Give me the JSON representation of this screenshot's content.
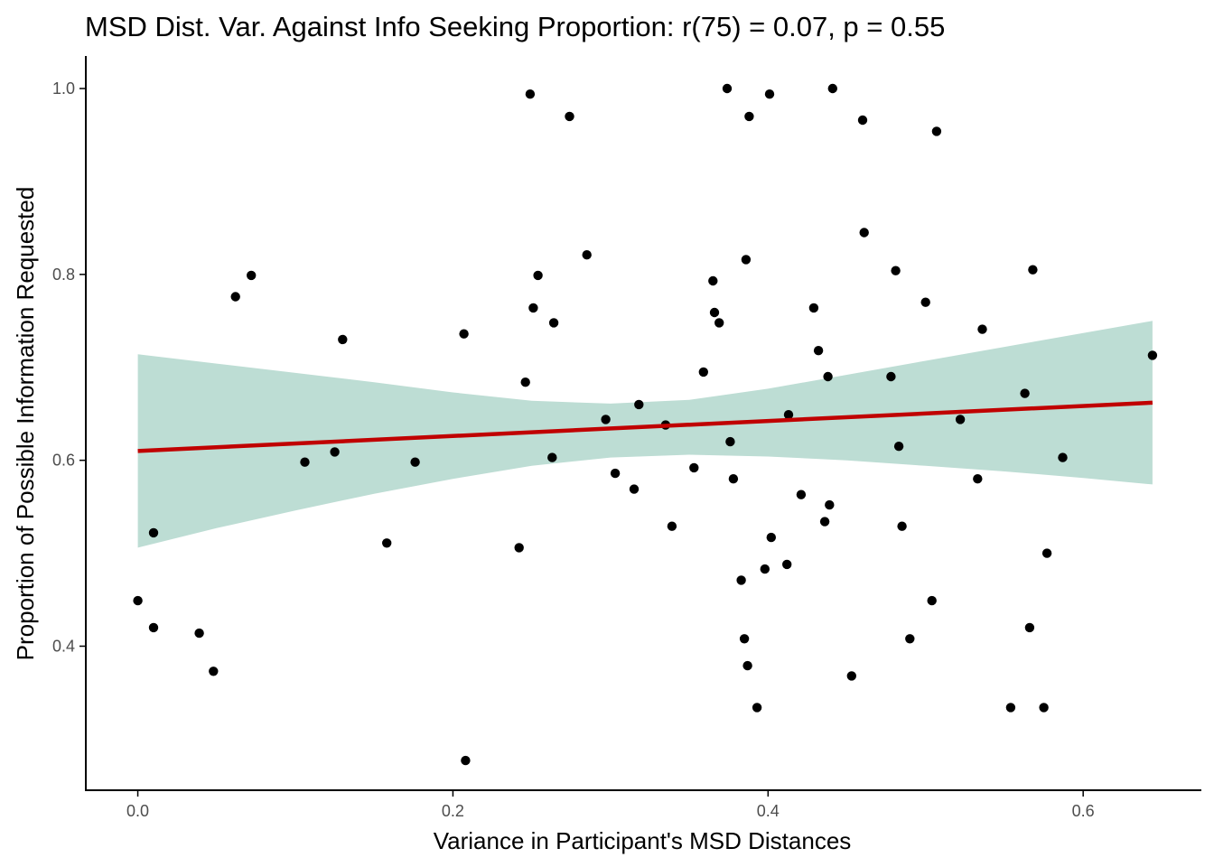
{
  "chart_data": {
    "type": "scatter",
    "title": "MSD Dist. Var. Against Info Seeking Proportion: r(75) = 0.07, p = 0.55",
    "xlabel": "Variance in Participant's MSD Distances",
    "ylabel": "Proportion of Possible Information Requested",
    "xlim": [
      -0.033,
      0.675
    ],
    "ylim": [
      0.245,
      1.035
    ],
    "x_ticks": [
      0.0,
      0.2,
      0.4,
      0.6
    ],
    "x_tick_labels": [
      "0.0",
      "0.2",
      "0.4",
      "0.6"
    ],
    "y_ticks": [
      0.4,
      0.6,
      0.8,
      1.0
    ],
    "y_tick_labels": [
      "0.4",
      "0.6",
      "0.8",
      "1.0"
    ],
    "grid": false,
    "legend": "none",
    "colors": {
      "points": "#000000",
      "fit_line": "#c00000",
      "confidence_band": "#bdddd4",
      "axis": "#000000",
      "tick_label": "#4d4d4d"
    },
    "points": [
      {
        "x": 0.0,
        "y": 0.449
      },
      {
        "x": 0.01,
        "y": 0.522
      },
      {
        "x": 0.01,
        "y": 0.42
      },
      {
        "x": 0.039,
        "y": 0.414
      },
      {
        "x": 0.048,
        "y": 0.373
      },
      {
        "x": 0.062,
        "y": 0.776
      },
      {
        "x": 0.072,
        "y": 0.799
      },
      {
        "x": 0.106,
        "y": 0.598
      },
      {
        "x": 0.125,
        "y": 0.609
      },
      {
        "x": 0.13,
        "y": 0.73
      },
      {
        "x": 0.158,
        "y": 0.511
      },
      {
        "x": 0.176,
        "y": 0.598
      },
      {
        "x": 0.207,
        "y": 0.736
      },
      {
        "x": 0.208,
        "y": 0.277
      },
      {
        "x": 0.242,
        "y": 0.506
      },
      {
        "x": 0.246,
        "y": 0.684
      },
      {
        "x": 0.249,
        "y": 0.994
      },
      {
        "x": 0.251,
        "y": 0.764
      },
      {
        "x": 0.254,
        "y": 0.799
      },
      {
        "x": 0.263,
        "y": 0.603
      },
      {
        "x": 0.264,
        "y": 0.748
      },
      {
        "x": 0.274,
        "y": 0.97
      },
      {
        "x": 0.285,
        "y": 0.821
      },
      {
        "x": 0.297,
        "y": 0.644
      },
      {
        "x": 0.303,
        "y": 0.586
      },
      {
        "x": 0.315,
        "y": 0.569
      },
      {
        "x": 0.318,
        "y": 0.66
      },
      {
        "x": 0.335,
        "y": 0.638
      },
      {
        "x": 0.339,
        "y": 0.529
      },
      {
        "x": 0.353,
        "y": 0.592
      },
      {
        "x": 0.359,
        "y": 0.695
      },
      {
        "x": 0.365,
        "y": 0.793
      },
      {
        "x": 0.366,
        "y": 0.759
      },
      {
        "x": 0.369,
        "y": 0.748
      },
      {
        "x": 0.374,
        "y": 1.0
      },
      {
        "x": 0.376,
        "y": 0.62
      },
      {
        "x": 0.378,
        "y": 0.58
      },
      {
        "x": 0.383,
        "y": 0.471
      },
      {
        "x": 0.385,
        "y": 0.408
      },
      {
        "x": 0.386,
        "y": 0.816
      },
      {
        "x": 0.387,
        "y": 0.379
      },
      {
        "x": 0.388,
        "y": 0.97
      },
      {
        "x": 0.393,
        "y": 0.334
      },
      {
        "x": 0.398,
        "y": 0.483
      },
      {
        "x": 0.401,
        "y": 0.994
      },
      {
        "x": 0.402,
        "y": 0.517
      },
      {
        "x": 0.412,
        "y": 0.488
      },
      {
        "x": 0.413,
        "y": 0.649
      },
      {
        "x": 0.421,
        "y": 0.563
      },
      {
        "x": 0.429,
        "y": 0.764
      },
      {
        "x": 0.432,
        "y": 0.718
      },
      {
        "x": 0.436,
        "y": 0.534
      },
      {
        "x": 0.438,
        "y": 0.69
      },
      {
        "x": 0.439,
        "y": 0.552
      },
      {
        "x": 0.441,
        "y": 1.0
      },
      {
        "x": 0.453,
        "y": 0.368
      },
      {
        "x": 0.46,
        "y": 0.966
      },
      {
        "x": 0.461,
        "y": 0.845
      },
      {
        "x": 0.478,
        "y": 0.69
      },
      {
        "x": 0.481,
        "y": 0.804
      },
      {
        "x": 0.483,
        "y": 0.615
      },
      {
        "x": 0.485,
        "y": 0.529
      },
      {
        "x": 0.49,
        "y": 0.408
      },
      {
        "x": 0.5,
        "y": 0.77
      },
      {
        "x": 0.504,
        "y": 0.449
      },
      {
        "x": 0.507,
        "y": 0.954
      },
      {
        "x": 0.522,
        "y": 0.644
      },
      {
        "x": 0.533,
        "y": 0.58
      },
      {
        "x": 0.536,
        "y": 0.741
      },
      {
        "x": 0.554,
        "y": 0.334
      },
      {
        "x": 0.563,
        "y": 0.672
      },
      {
        "x": 0.566,
        "y": 0.42
      },
      {
        "x": 0.568,
        "y": 0.805
      },
      {
        "x": 0.575,
        "y": 0.334
      },
      {
        "x": 0.577,
        "y": 0.5
      },
      {
        "x": 0.587,
        "y": 0.603
      },
      {
        "x": 0.644,
        "y": 0.713
      }
    ],
    "fit_line": {
      "x": [
        0.0,
        0.644
      ],
      "y": [
        0.61,
        0.662
      ]
    },
    "confidence_band": {
      "x": [
        0.0,
        0.05,
        0.1,
        0.15,
        0.2,
        0.25,
        0.3,
        0.35,
        0.4,
        0.45,
        0.5,
        0.55,
        0.6,
        0.644
      ],
      "lower": [
        0.506,
        0.527,
        0.546,
        0.564,
        0.58,
        0.594,
        0.603,
        0.606,
        0.604,
        0.6,
        0.594,
        0.588,
        0.581,
        0.574
      ],
      "upper": [
        0.714,
        0.704,
        0.694,
        0.684,
        0.673,
        0.664,
        0.661,
        0.665,
        0.677,
        0.692,
        0.707,
        0.722,
        0.737,
        0.75
      ]
    }
  }
}
